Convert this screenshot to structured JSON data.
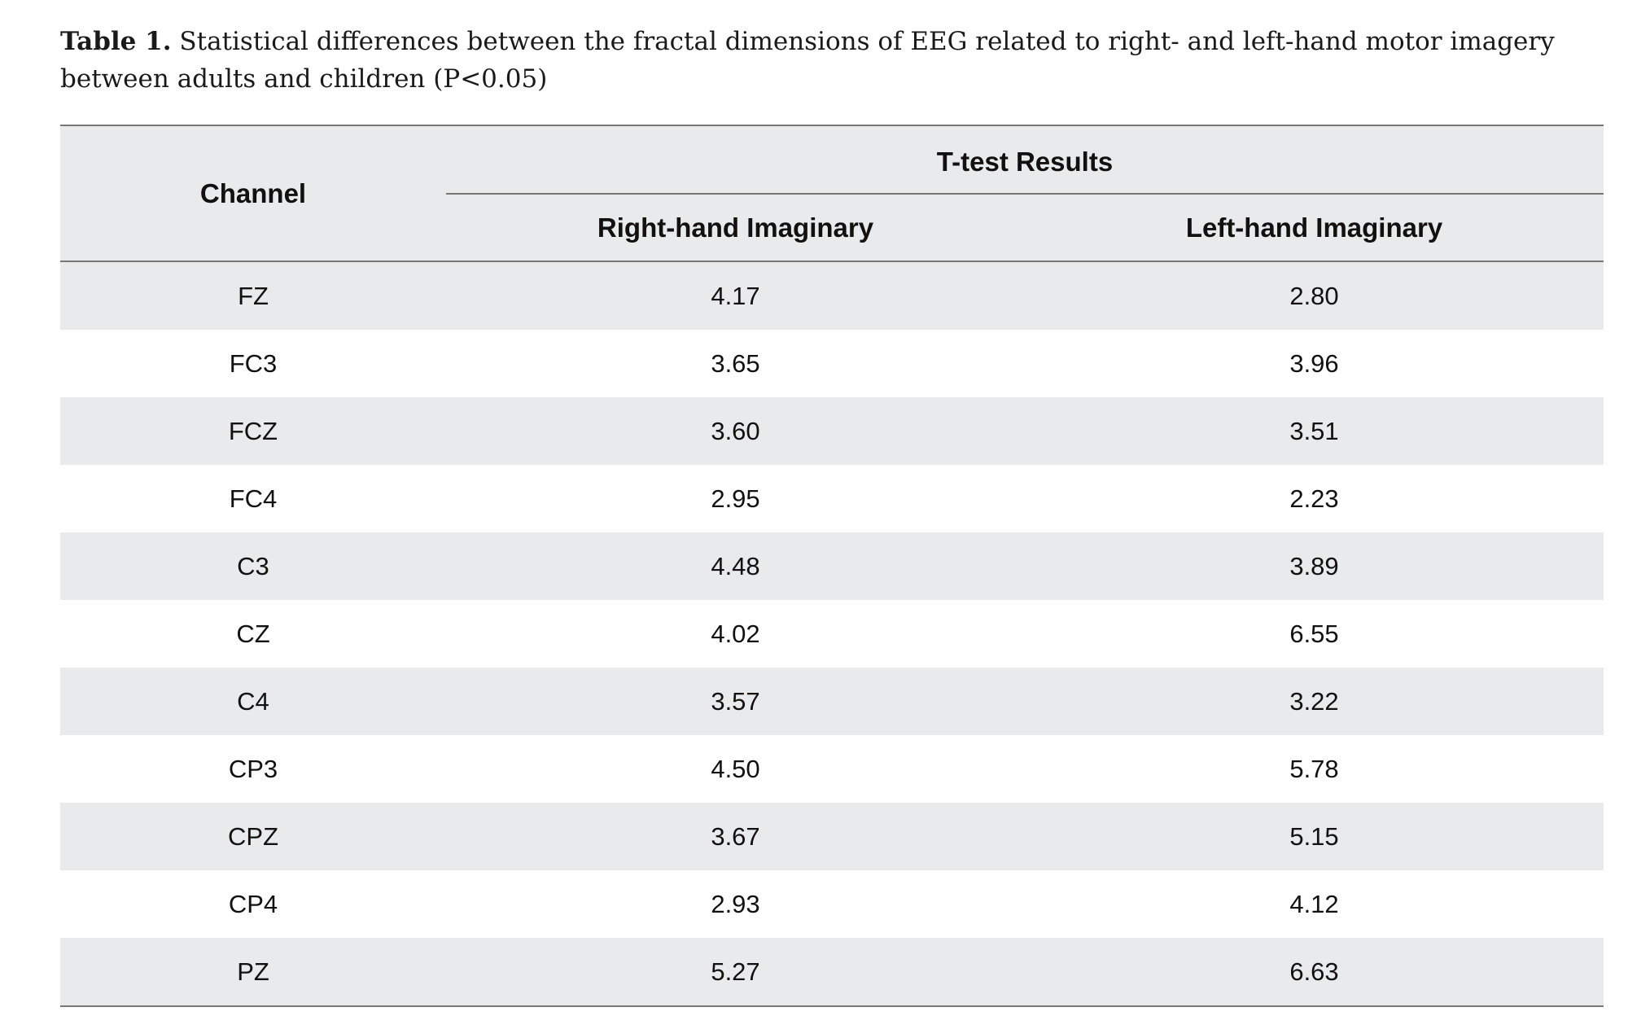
{
  "caption": {
    "label": "Table 1.",
    "text": " Statistical differences between the fractal dimensions of EEG related to right- and left-hand motor imagery between adults and children (P<0.05)"
  },
  "table": {
    "header": {
      "channel": "Channel",
      "group": "T-test Results",
      "right_hand": "Right-hand Imaginary",
      "left_hand": "Left-hand Imaginary"
    },
    "rows": [
      {
        "channel": "FZ",
        "right": "4.17",
        "left": "2.80"
      },
      {
        "channel": "FC3",
        "right": "3.65",
        "left": "3.96"
      },
      {
        "channel": "FCZ",
        "right": "3.60",
        "left": "3.51"
      },
      {
        "channel": "FC4",
        "right": "2.95",
        "left": "2.23"
      },
      {
        "channel": "C3",
        "right": "4.48",
        "left": "3.89"
      },
      {
        "channel": "CZ",
        "right": "4.02",
        "left": "6.55"
      },
      {
        "channel": "C4",
        "right": "3.57",
        "left": "3.22"
      },
      {
        "channel": "CP3",
        "right": "4.50",
        "left": "5.78"
      },
      {
        "channel": "CPZ",
        "right": "3.67",
        "left": "5.15"
      },
      {
        "channel": "CP4",
        "right": "2.93",
        "left": "4.12"
      },
      {
        "channel": "PZ",
        "right": "5.27",
        "left": "6.63"
      }
    ]
  },
  "colors": {
    "band_gray": "#e9eaec",
    "rule_gray": "#777777",
    "text": "#111111"
  }
}
